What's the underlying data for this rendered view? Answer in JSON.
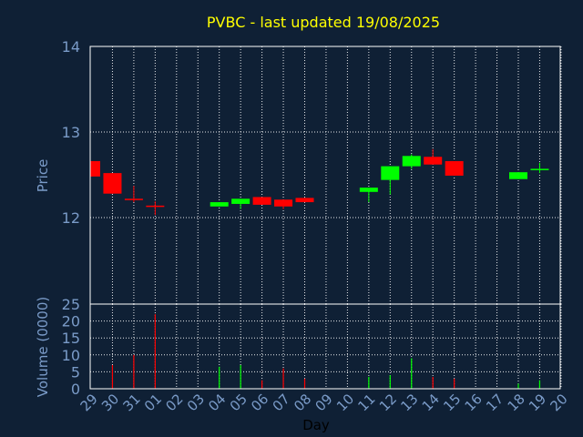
{
  "chart_data": [
    {
      "type": "candlestick",
      "title": "PVBC - last updated 19/08/2025",
      "ylabel": "Price",
      "ylim": [
        12,
        14
      ],
      "yticks": [
        "12",
        "13",
        "14"
      ],
      "grid": true,
      "categories": [
        "29",
        "30",
        "31",
        "01",
        "02",
        "03",
        "04",
        "05",
        "06",
        "07",
        "08",
        "09",
        "10",
        "11",
        "12",
        "13",
        "14",
        "15",
        "16",
        "17",
        "18",
        "19",
        "20"
      ],
      "candles": [
        {
          "day": "29",
          "open": 12.66,
          "close": 12.48,
          "high": 12.66,
          "low": 12.48
        },
        {
          "day": "30",
          "open": 12.52,
          "close": 12.28,
          "high": 12.52,
          "low": 12.28
        },
        {
          "day": "31",
          "open": 12.22,
          "close": 12.21,
          "high": 12.37,
          "low": 12.18
        },
        {
          "day": "01",
          "open": 12.14,
          "close": 12.13,
          "high": 12.19,
          "low": 12.03
        },
        {
          "day": "04",
          "open": 12.13,
          "close": 12.18,
          "high": 12.18,
          "low": 12.13
        },
        {
          "day": "05",
          "open": 12.16,
          "close": 12.22,
          "high": 12.22,
          "low": 12.1
        },
        {
          "day": "06",
          "open": 12.24,
          "close": 12.15,
          "high": 12.24,
          "low": 12.15
        },
        {
          "day": "07",
          "open": 12.21,
          "close": 12.13,
          "high": 12.21,
          "low": 12.1
        },
        {
          "day": "08",
          "open": 12.23,
          "close": 12.18,
          "high": 12.23,
          "low": 12.18
        },
        {
          "day": "11",
          "open": 12.3,
          "close": 12.35,
          "high": 12.35,
          "low": 12.18
        },
        {
          "day": "12",
          "open": 12.44,
          "close": 12.6,
          "high": 12.6,
          "low": 12.27
        },
        {
          "day": "13",
          "open": 12.6,
          "close": 12.72,
          "high": 12.74,
          "low": 12.57
        },
        {
          "day": "14",
          "open": 12.71,
          "close": 12.62,
          "high": 12.8,
          "low": 12.62
        },
        {
          "day": "15",
          "open": 12.66,
          "close": 12.49,
          "high": 12.66,
          "low": 12.49
        },
        {
          "day": "18",
          "open": 12.45,
          "close": 12.53,
          "high": 12.53,
          "low": 12.45
        },
        {
          "day": "19",
          "open": 12.56,
          "close": 12.57,
          "high": 12.64,
          "low": 12.52
        }
      ]
    },
    {
      "type": "bar",
      "xlabel": "Day",
      "ylabel": "Volume (0000)",
      "ylim": [
        0,
        25
      ],
      "yticks": [
        "0",
        "5",
        "10",
        "15",
        "20",
        "25"
      ],
      "grid": true,
      "categories": [
        "29",
        "30",
        "31",
        "01",
        "02",
        "03",
        "04",
        "05",
        "06",
        "07",
        "08",
        "09",
        "10",
        "11",
        "12",
        "13",
        "14",
        "15",
        "16",
        "17",
        "18",
        "19",
        "20"
      ],
      "bars": [
        {
          "day": "30",
          "value": 7,
          "direction": "down"
        },
        {
          "day": "31",
          "value": 10,
          "direction": "down"
        },
        {
          "day": "01",
          "value": 22,
          "direction": "down"
        },
        {
          "day": "04",
          "value": 6.5,
          "direction": "up"
        },
        {
          "day": "05",
          "value": 7,
          "direction": "up"
        },
        {
          "day": "06",
          "value": 2.5,
          "direction": "down"
        },
        {
          "day": "07",
          "value": 6,
          "direction": "down"
        },
        {
          "day": "08",
          "value": 3,
          "direction": "down"
        },
        {
          "day": "11",
          "value": 3.5,
          "direction": "up"
        },
        {
          "day": "12",
          "value": 4,
          "direction": "up"
        },
        {
          "day": "13",
          "value": 9,
          "direction": "up"
        },
        {
          "day": "14",
          "value": 3.5,
          "direction": "down"
        },
        {
          "day": "15",
          "value": 3,
          "direction": "down"
        },
        {
          "day": "18",
          "value": 1.5,
          "direction": "up"
        },
        {
          "day": "19",
          "value": 2.5,
          "direction": "up"
        }
      ]
    }
  ],
  "colors": {
    "background": "#0f2035",
    "plot_border": "#ffffff",
    "grid": "#ffffff",
    "title": "#ffff00",
    "axis_text": "#7a9bc8",
    "up": "#00ff00",
    "down": "#ff0000"
  }
}
